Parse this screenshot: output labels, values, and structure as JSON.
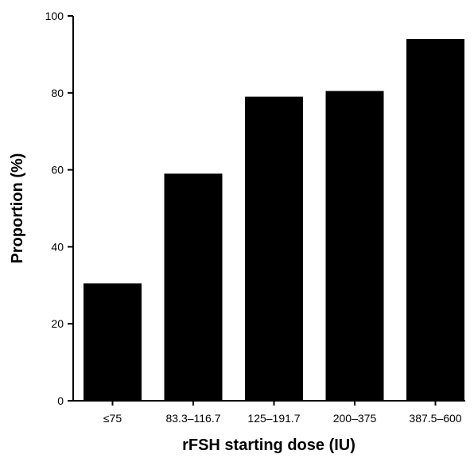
{
  "chart_data": {
    "type": "bar",
    "title": "",
    "xlabel": "rFSH starting dose (IU)",
    "ylabel": "Proportion (%)",
    "categories": [
      "≤75",
      "83.3–116.7",
      "125–191.7",
      "200–375",
      "387.5–600"
    ],
    "values": [
      30.5,
      59,
      79,
      80.5,
      94
    ],
    "ylim": [
      0,
      100
    ],
    "yticks": [
      "0",
      "20",
      "40",
      "60",
      "80",
      "100"
    ],
    "grid": false,
    "legend": "none",
    "bar_color": "#000000"
  }
}
